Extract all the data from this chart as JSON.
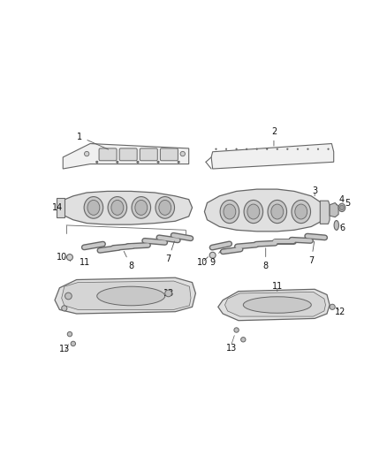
{
  "bg_color": "#ffffff",
  "line_color": "#666666",
  "fill_color": "#e8e8e8",
  "label_color": "#111111",
  "fig_width": 4.38,
  "fig_height": 5.33,
  "dpi": 100
}
